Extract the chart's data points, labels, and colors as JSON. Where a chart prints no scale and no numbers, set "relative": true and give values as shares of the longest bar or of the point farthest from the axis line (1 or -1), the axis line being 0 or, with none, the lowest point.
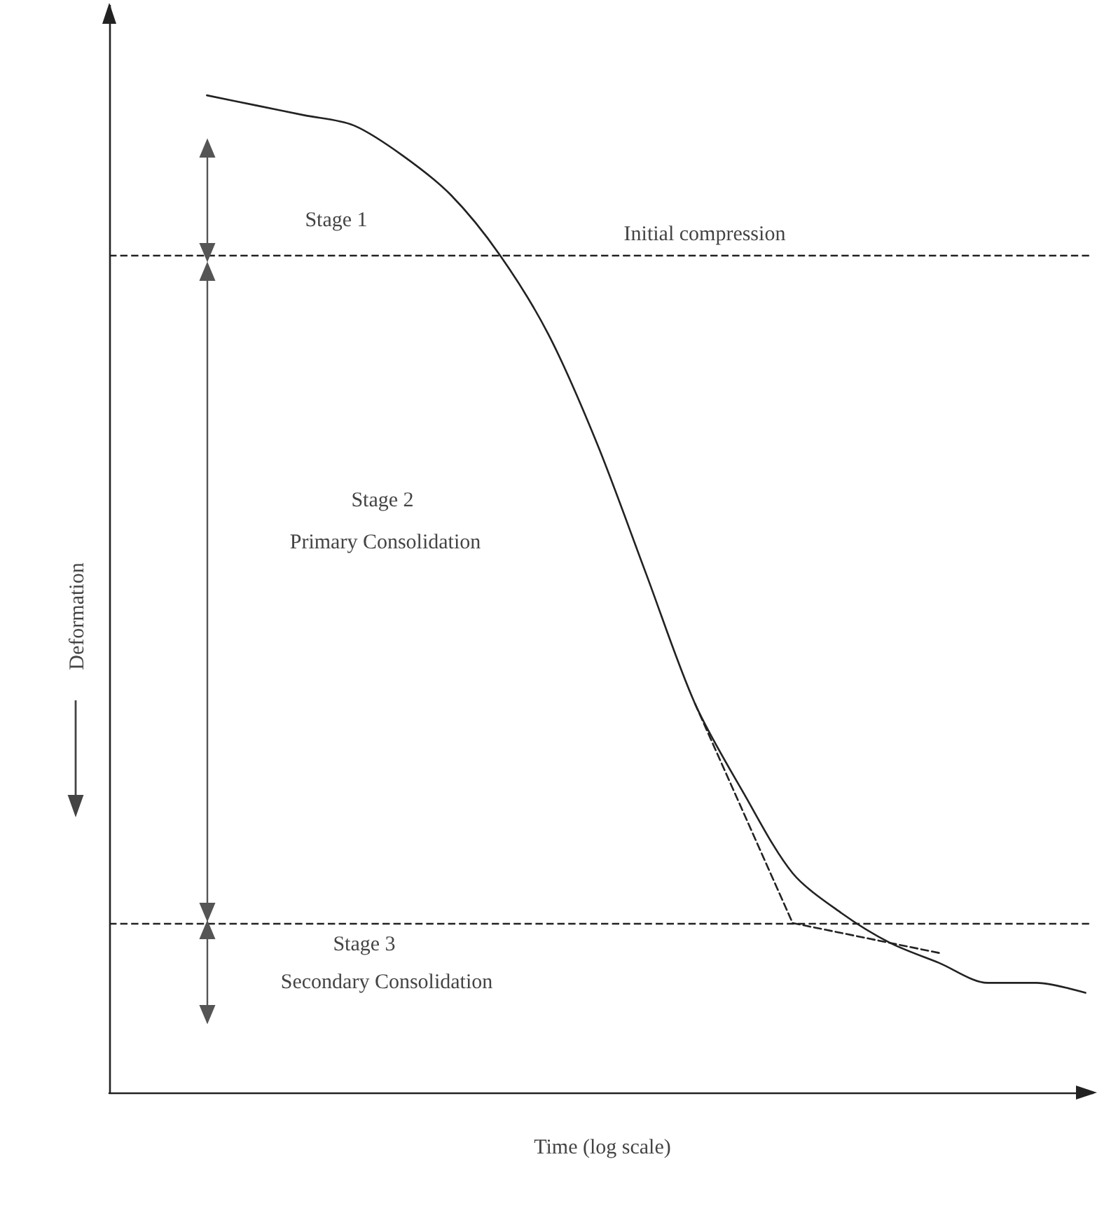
{
  "chart_data": {
    "type": "line",
    "relative": true,
    "xlabel": "Time (log scale)",
    "ylabel": "Deformation",
    "categories": [
      null,
      null,
      null,
      null,
      null,
      null,
      null,
      null,
      null,
      null,
      null,
      null,
      null,
      null,
      null,
      null,
      null,
      null,
      null
    ],
    "series": [
      {
        "color": "#222222",
        "line_style": "solid",
        "values": [
          1,
          0.99,
          0.98,
          0.97,
          0.94,
          0.9,
          0.84,
          0.76,
          0.65,
          0.52,
          0.39,
          0.3,
          0.22,
          0.18,
          0.15,
          0.13,
          0.11,
          0.11,
          0.1
        ]
      },
      {
        "color": "#222222",
        "line_style": "dashed",
        "values": [
          null,
          null,
          null,
          null,
          null,
          null,
          null,
          null,
          null,
          null,
          0.39,
          null,
          0.17,
          null,
          null,
          null,
          null,
          null,
          null
        ]
      },
      {
        "color": "#222222",
        "line_style": "dashed",
        "values": [
          null,
          null,
          null,
          null,
          null,
          null,
          null,
          null,
          null,
          null,
          null,
          null,
          0.17,
          null,
          null,
          0.14,
          null,
          null,
          null
        ]
      }
    ],
    "ref_lines": [
      {
        "axis": "y",
        "value": 0.84,
        "color": "#222222",
        "line_style": "dashed"
      },
      {
        "axis": "y",
        "value": 0.17,
        "color": "#222222",
        "line_style": "dashed"
      }
    ],
    "annotations": [
      "Stage 1",
      "Initial compression",
      "Stage 2",
      "Primary Consolidation",
      "Stage 3",
      "Secondary Consolidation"
    ],
    "marker": "none",
    "grid": false
  }
}
